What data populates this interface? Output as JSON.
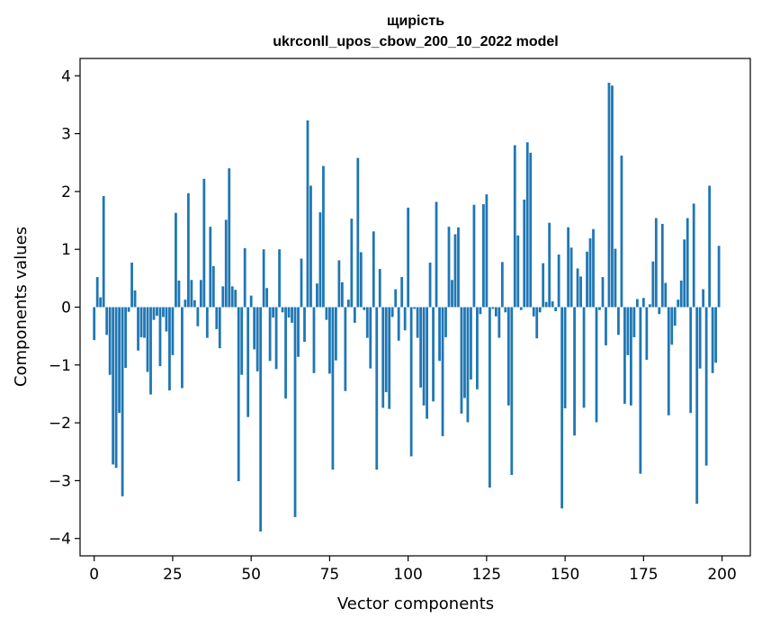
{
  "chart_data": {
    "type": "bar",
    "title_line1": "щирість",
    "title_line2": "ukrconll_upos_cbow_200_10_2022 model",
    "xlabel": "Vector components",
    "ylabel": "Components values",
    "xlim": [
      -4.5,
      209
    ],
    "ylim": [
      -4.3,
      4.3
    ],
    "xticks": [
      0,
      25,
      50,
      75,
      100,
      125,
      150,
      175,
      200
    ],
    "xtick_labels": [
      "0",
      "25",
      "50",
      "75",
      "100",
      "125",
      "150",
      "175",
      "200"
    ],
    "yticks": [
      -4,
      -3,
      -2,
      -1,
      0,
      1,
      2,
      3,
      4
    ],
    "ytick_labels": [
      "−4",
      "−3",
      "−2",
      "−1",
      "0",
      "1",
      "2",
      "3",
      "4"
    ],
    "bar_color": "#1f77b4",
    "x": [
      0,
      1,
      2,
      3,
      4,
      5,
      6,
      7,
      8,
      9,
      10,
      11,
      12,
      13,
      14,
      15,
      16,
      17,
      18,
      19,
      20,
      21,
      22,
      23,
      24,
      25,
      26,
      27,
      28,
      29,
      30,
      31,
      32,
      33,
      34,
      35,
      36,
      37,
      38,
      39,
      40,
      41,
      42,
      43,
      44,
      45,
      46,
      47,
      48,
      49,
      50,
      51,
      52,
      53,
      54,
      55,
      56,
      57,
      58,
      59,
      60,
      61,
      62,
      63,
      64,
      65,
      66,
      67,
      68,
      69,
      70,
      71,
      72,
      73,
      74,
      75,
      76,
      77,
      78,
      79,
      80,
      81,
      82,
      83,
      84,
      85,
      86,
      87,
      88,
      89,
      90,
      91,
      92,
      93,
      94,
      95,
      96,
      97,
      98,
      99,
      100,
      101,
      102,
      103,
      104,
      105,
      106,
      107,
      108,
      109,
      110,
      111,
      112,
      113,
      114,
      115,
      116,
      117,
      118,
      119,
      120,
      121,
      122,
      123,
      124,
      125,
      126,
      127,
      128,
      129,
      130,
      131,
      132,
      133,
      134,
      135,
      136,
      137,
      138,
      139,
      140,
      141,
      142,
      143,
      144,
      145,
      146,
      147,
      148,
      149,
      150,
      151,
      152,
      153,
      154,
      155,
      156,
      157,
      158,
      159,
      160,
      161,
      162,
      163,
      164,
      165,
      166,
      167,
      168,
      169,
      170,
      171,
      172,
      173,
      174,
      175,
      176,
      177,
      178,
      179,
      180,
      181,
      182,
      183,
      184,
      185,
      186,
      187,
      188,
      189,
      190,
      191,
      192,
      193,
      194,
      195,
      196,
      197,
      198,
      199
    ],
    "values": [
      -0.57,
      0.52,
      0.17,
      1.92,
      -0.48,
      -1.17,
      -2.72,
      -2.78,
      -1.83,
      -3.27,
      -1.05,
      -0.08,
      0.77,
      0.29,
      -0.75,
      -0.52,
      -0.53,
      -1.12,
      -1.51,
      -0.22,
      -0.15,
      -1.02,
      -0.17,
      -0.42,
      -1.44,
      -0.83,
      1.63,
      0.46,
      -1.4,
      0.13,
      1.97,
      0.47,
      0.12,
      -0.33,
      0.47,
      2.22,
      -0.53,
      1.39,
      0.71,
      -0.38,
      -0.71,
      0.36,
      1.51,
      2.4,
      0.36,
      0.3,
      -3.01,
      -1.17,
      1.02,
      -1.9,
      0.2,
      -0.73,
      -1.11,
      -3.88,
      1.0,
      0.33,
      -0.93,
      -0.18,
      -1.07,
      1.0,
      -0.09,
      -1.58,
      -0.18,
      -0.27,
      -3.63,
      -0.86,
      0.84,
      -0.6,
      3.23,
      2.1,
      -1.14,
      0.41,
      1.64,
      2.44,
      -0.22,
      -1.15,
      -2.81,
      -0.92,
      0.81,
      0.43,
      -1.45,
      0.13,
      1.53,
      -0.27,
      2.58,
      0.95,
      -0.05,
      -0.53,
      -1.06,
      1.31,
      -2.81,
      0.66,
      -1.74,
      -1.47,
      -1.76,
      -0.17,
      0.31,
      -0.58,
      0.52,
      -0.4,
      1.72,
      -2.58,
      -0.03,
      -0.53,
      -1.39,
      -1.7,
      -1.93,
      0.77,
      -1.63,
      1.82,
      -0.93,
      -2.23,
      -0.52,
      1.39,
      0.47,
      1.26,
      1.38,
      -1.84,
      -1.57,
      -1.99,
      -1.25,
      1.77,
      -1.42,
      -0.12,
      1.78,
      1.95,
      -3.12,
      -0.03,
      -0.16,
      -0.53,
      0.78,
      -0.09,
      -1.7,
      -2.9,
      2.8,
      1.24,
      -0.05,
      1.86,
      2.85,
      2.67,
      -0.16,
      -0.54,
      -0.09,
      0.76,
      0.09,
      1.46,
      0.1,
      -0.07,
      0.91,
      -3.48,
      -1.75,
      1.38,
      1.03,
      -2.22,
      0.67,
      0.53,
      -1.74,
      0.96,
      1.19,
      1.35,
      -1.99,
      -0.05,
      0.52,
      -0.66,
      3.88,
      3.83,
      1.01,
      -0.48,
      2.62,
      -1.67,
      -0.83,
      -1.7,
      -0.52,
      0.14,
      -2.88,
      0.16,
      -0.91,
      0.05,
      0.79,
      1.54,
      -0.12,
      1.44,
      0.42,
      -1.87,
      -0.65,
      -0.32,
      0.13,
      0.46,
      1.17,
      1.54,
      -1.83,
      1.79,
      -3.4,
      -1.06,
      0.31,
      -2.74,
      2.1,
      -1.14,
      -0.96,
      1.06
    ]
  }
}
